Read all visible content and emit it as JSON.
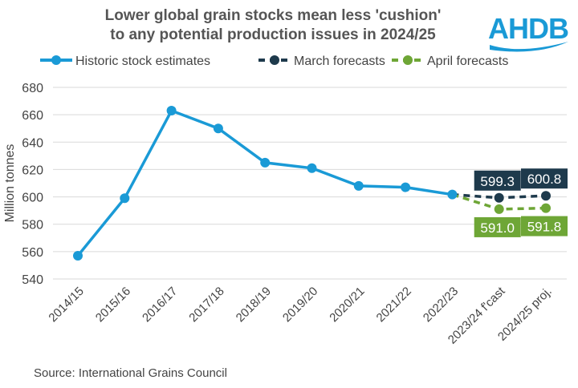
{
  "title_line1": "Lower global grain stocks mean less 'cushion'",
  "title_line2": "to any potential production issues in 2024/25",
  "logo_text": "AHDB",
  "source": "Source: International Grains Council",
  "chart_data": {
    "type": "line",
    "ylabel": "Million tonnes",
    "ylim": [
      540,
      680
    ],
    "yticks": [
      540,
      560,
      580,
      600,
      620,
      640,
      660,
      680
    ],
    "grid": true,
    "legend_position": "top",
    "categories": [
      "2014/15",
      "2015/16",
      "2016/17",
      "2017/18",
      "2018/19",
      "2019/20",
      "2020/21",
      "2021/22",
      "2022/23",
      "2023/24 f'cast",
      "2024/25 proj."
    ],
    "series": [
      {
        "name": "Historic stock estimates",
        "color": "#1a9ad6",
        "dashed": false,
        "values": [
          557,
          599,
          663,
          650,
          625,
          621,
          608,
          607,
          601.7,
          null,
          null
        ]
      },
      {
        "name": "March forecasts",
        "color": "#1e3a4c",
        "dashed": true,
        "values": [
          null,
          null,
          null,
          null,
          null,
          null,
          null,
          null,
          601.7,
          599.3,
          600.8
        ],
        "labels": [
          null,
          null,
          null,
          null,
          null,
          null,
          null,
          null,
          null,
          "599.3",
          "600.8"
        ],
        "label_position": "above"
      },
      {
        "name": "April forecasts",
        "color": "#6ea636",
        "dashed": true,
        "values": [
          null,
          null,
          null,
          null,
          null,
          null,
          null,
          null,
          601.7,
          591.0,
          591.8
        ],
        "labels": [
          null,
          null,
          null,
          null,
          null,
          null,
          null,
          null,
          null,
          "591.0",
          "591.8"
        ],
        "label_position": "below"
      }
    ]
  }
}
